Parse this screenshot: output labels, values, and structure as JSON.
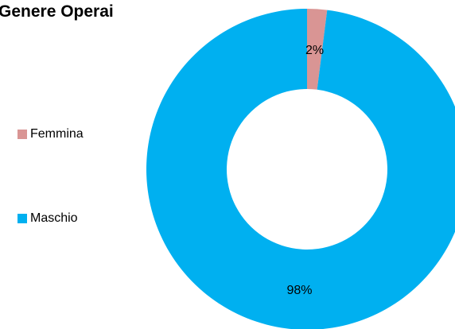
{
  "chart_data": {
    "type": "pie",
    "variant": "donut",
    "title": "Genere Operai",
    "categories": [
      "Femmina",
      "Maschio"
    ],
    "values": [
      2,
      98
    ],
    "value_labels": [
      "2%",
      "98%"
    ],
    "colors": [
      "#D99594",
      "#00B0F0"
    ],
    "legend_position": "left",
    "start_angle_deg": 0,
    "direction": "clockwise"
  }
}
